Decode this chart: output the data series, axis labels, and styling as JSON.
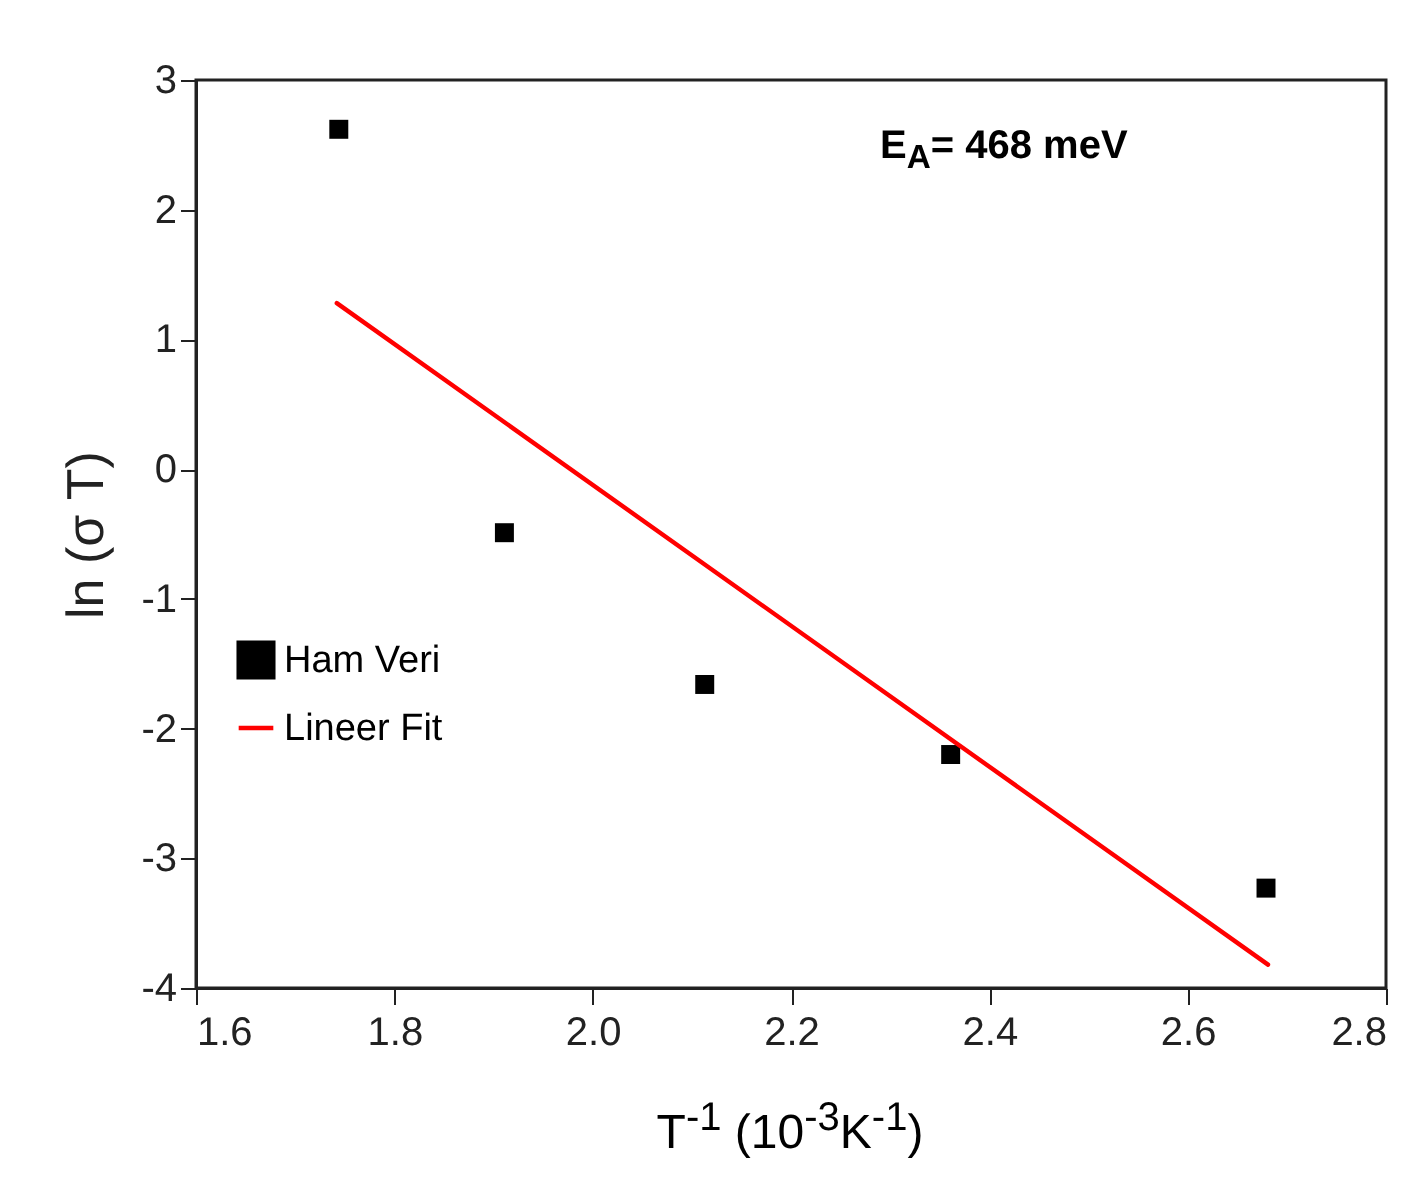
{
  "chart_data": {
    "type": "scatter",
    "xlabel": "T$^{-1}$ (10$^{-3}$K$^{-1}$)",
    "ylabel": "ln (σ T)",
    "annotations": [
      "E$_{A}$= 468 meV"
    ],
    "xlim": [
      1.6,
      2.8
    ],
    "xticks": [
      1.6,
      1.8,
      {
        "value": 2,
        "label": "2.0"
      },
      2.2,
      2.4,
      2.6,
      2.8
    ],
    "ylim": [
      -4,
      3
    ],
    "yticks": [
      -4,
      -3,
      -2,
      -1,
      0,
      1,
      2,
      3
    ],
    "grid": false,
    "legend": "left",
    "marker": "square",
    "series": [
      {
        "name": "Ham Veri",
        "color": "#000000",
        "x": [
          1.744,
          1.911,
          2.113,
          2.361,
          2.679
        ],
        "values": [
          2.62,
          -0.49,
          -1.66,
          -2.2,
          -3.23
        ]
      },
      {
        "name": "Lineer Fit",
        "type": "line",
        "marker": "none",
        "color": "#ff0000",
        "x": [
          1.742,
          2.681
        ],
        "values": [
          1.28,
          -3.82
        ]
      }
    ]
  }
}
